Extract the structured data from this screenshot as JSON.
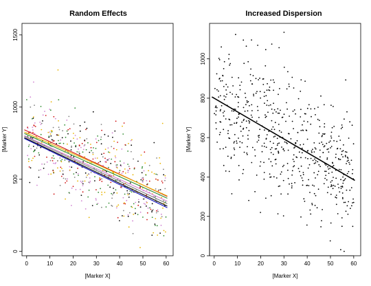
{
  "chart_data": [
    {
      "type": "scatter",
      "title": "Random Effects",
      "xlabel": "[Marker X]",
      "ylabel": "[Marker Y]",
      "xlim": [
        -2,
        63
      ],
      "ylim": [
        -30,
        1580
      ],
      "xticks": [
        0,
        10,
        20,
        30,
        40,
        50,
        60
      ],
      "yticks": [
        0,
        500,
        1000,
        1500
      ],
      "grid": false,
      "legend": "none",
      "point_colors": [
        "#000000",
        "#e8b400",
        "#2e8b2e",
        "#d01010",
        "#d080d0",
        "#808080"
      ],
      "lines": [
        {
          "color": "#d01010",
          "intercept": 835,
          "slope": -7.5
        },
        {
          "color": "#e8b400",
          "intercept": 820,
          "slope": -7.2
        },
        {
          "color": "#2e8b2e",
          "intercept": 810,
          "slope": -7.3
        },
        {
          "color": "#d080d0",
          "intercept": 795,
          "slope": -7.4
        },
        {
          "color": "#808080",
          "intercept": 790,
          "slope": -7.6
        },
        {
          "color": "#000000",
          "intercept": 780,
          "slope": -7.7
        },
        {
          "color": "#1010c0",
          "intercept": 775,
          "slope": -7.8
        }
      ],
      "points": {
        "n": 600,
        "x_range": [
          0,
          60
        ],
        "intercept": 800,
        "slope": -7.5,
        "sd": 140
      }
    },
    {
      "type": "scatter",
      "title": "Increased Dispersion",
      "xlabel": "[Marker X]",
      "ylabel": "[Marker Y]",
      "xlim": [
        -2,
        63
      ],
      "ylim": [
        0,
        1180
      ],
      "xticks": [
        0,
        10,
        20,
        30,
        40,
        50,
        60
      ],
      "yticks": [
        0,
        200,
        400,
        600,
        800,
        1000
      ],
      "grid": false,
      "legend": "none",
      "point_colors": [
        "#000000"
      ],
      "lines": [
        {
          "color": "#000000",
          "intercept": 800,
          "slope": -6.9
        }
      ],
      "points": {
        "n": 600,
        "x_range": [
          0,
          60
        ],
        "intercept": 800,
        "slope": -6.9,
        "sd": 170
      }
    }
  ]
}
